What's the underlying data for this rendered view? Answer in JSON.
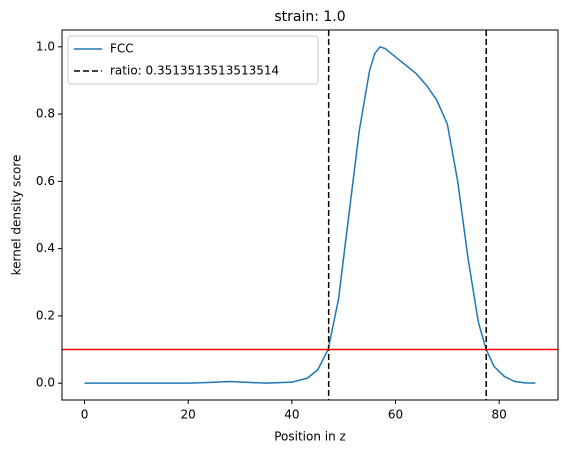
{
  "chart_data": {
    "type": "line",
    "title": "strain: 1.0",
    "xlabel": "Position in z",
    "ylabel": "kernel density score",
    "series": [
      {
        "name": "FCC",
        "color": "#1f77b4",
        "x": [
          0,
          10,
          20,
          24,
          28,
          32,
          35,
          40,
          43,
          45,
          47,
          49,
          51,
          53,
          55,
          56,
          57,
          58,
          60,
          62,
          64,
          66,
          68,
          70,
          72,
          74,
          76,
          77.5,
          79,
          81,
          83,
          85,
          87
        ],
        "values": [
          0,
          0,
          0,
          0.002,
          0.005,
          0.002,
          0,
          0.003,
          0.015,
          0.04,
          0.1,
          0.25,
          0.5,
          0.75,
          0.93,
          0.98,
          1.0,
          0.995,
          0.97,
          0.945,
          0.92,
          0.885,
          0.84,
          0.77,
          0.6,
          0.37,
          0.18,
          0.1,
          0.05,
          0.02,
          0.005,
          0.001,
          0
        ]
      }
    ],
    "vlines": {
      "name": "ratio: 0.3513513513513514",
      "color": "#000000",
      "values": [
        47.1,
        77.5
      ]
    },
    "hlines": {
      "color": "#ff0000",
      "values": [
        0.1
      ]
    },
    "xlim": [
      -4.35,
      91.35
    ],
    "ylim": [
      -0.05,
      1.05
    ],
    "xticks": [
      0,
      20,
      40,
      60,
      80
    ],
    "yticks": [
      {
        "value": 0,
        "label": "0.0"
      },
      {
        "value": 0.2,
        "label": "0.2"
      },
      {
        "value": 0.4,
        "label": "0.4"
      },
      {
        "value": 0.6,
        "label": "0.6"
      },
      {
        "value": 0.8,
        "label": "0.8"
      },
      {
        "value": 1.0,
        "label": "1.0"
      }
    ],
    "legend": "upper left"
  }
}
